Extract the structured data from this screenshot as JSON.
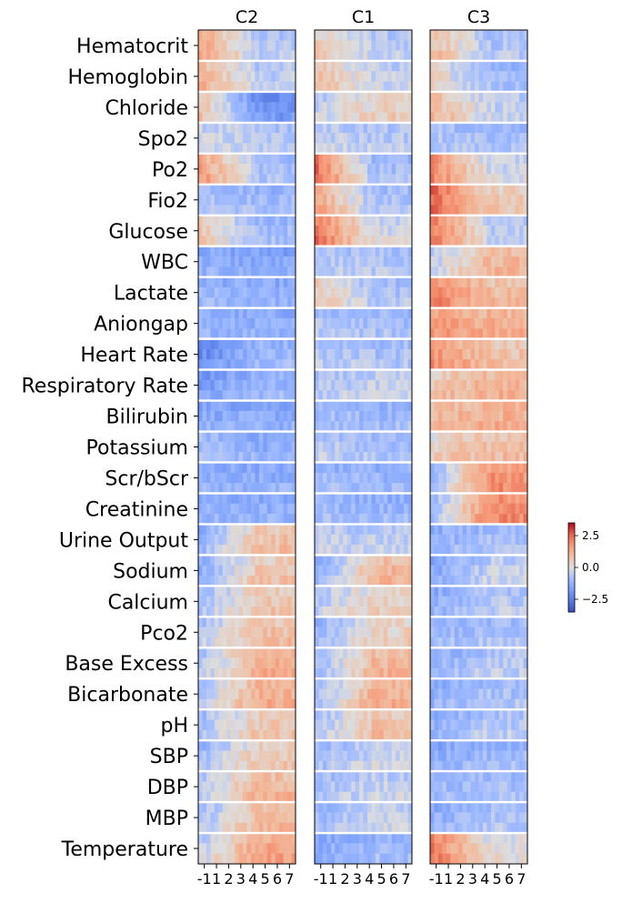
{
  "chart_data": {
    "type": "heatmap",
    "panels": [
      "C2",
      "C1",
      "C3"
    ],
    "variables": [
      "Hematocrit",
      "Hemoglobin",
      "Chloride",
      "Spo2",
      "Po2",
      "Fio2",
      "Glucose",
      "WBC",
      "Lactate",
      "Aniongap",
      "Heart Rate",
      "Respiratory Rate",
      "Bilirubin",
      "Potassium",
      "Scr/bScr",
      "Creatinine",
      "Urine Output",
      "Sodium",
      "Calcium",
      "Pco2",
      "Base Excess",
      "Bicarbonate",
      "pH",
      "SBP",
      "DBP",
      "MBP",
      "Temperature"
    ],
    "x_ticks": [
      "-1",
      "1",
      "2",
      "3",
      "4",
      "5",
      "6",
      "7"
    ],
    "rows_per_variable": 3,
    "columns": 24,
    "colorbar": {
      "ticks": [
        "2.5",
        "0.0",
        "−2.5"
      ],
      "tick_values": [
        2.5,
        0.0,
        -2.5
      ],
      "range": [
        -3.5,
        3.5
      ],
      "colormap": "coolwarm"
    },
    "mean_levels": {
      "C2": {
        "Hematocrit": [
          1.4,
          -0.6
        ],
        "Hemoglobin": [
          1.2,
          -0.5
        ],
        "Chloride": [
          0.8,
          -2.0
        ],
        "Spo2": [
          -0.2,
          -0.6
        ],
        "Po2": [
          1.6,
          -0.8
        ],
        "Fio2": [
          -0.6,
          -1.0
        ],
        "Glucose": [
          0.6,
          -0.9
        ],
        "WBC": [
          -1.3,
          -1.5
        ],
        "Lactate": [
          -1.1,
          -1.3
        ],
        "Aniongap": [
          -1.2,
          -1.3
        ],
        "Heart Rate": [
          -2.2,
          -1.0
        ],
        "Respiratory Rate": [
          -1.8,
          -1.1
        ],
        "Bilirubin": [
          -1.4,
          -1.4
        ],
        "Potassium": [
          -0.8,
          -1.3
        ],
        "Scr/bScr": [
          -1.3,
          -1.3
        ],
        "Creatinine": [
          -1.3,
          -1.3
        ],
        "Urine Output": [
          -1.2,
          0.8
        ],
        "Sodium": [
          -1.2,
          0.7
        ],
        "Calcium": [
          -0.8,
          0.6
        ],
        "Pco2": [
          -0.6,
          0.8
        ],
        "Base Excess": [
          -0.7,
          1.2
        ],
        "Bicarbonate": [
          -0.6,
          1.2
        ],
        "pH": [
          -0.8,
          0.6
        ],
        "SBP": [
          -1.0,
          0.6
        ],
        "DBP": [
          -0.5,
          1.0
        ],
        "MBP": [
          -0.8,
          0.9
        ],
        "Temperature": [
          -0.4,
          1.4
        ]
      },
      "C1": {
        "Hematocrit": [
          0.6,
          -0.5
        ],
        "Hemoglobin": [
          0.9,
          -0.4
        ],
        "Chloride": [
          -0.4,
          0.4
        ],
        "Spo2": [
          -0.4,
          -0.6
        ],
        "Po2": [
          2.4,
          -0.9
        ],
        "Fio2": [
          1.4,
          -0.8
        ],
        "Glucose": [
          2.2,
          -0.2
        ],
        "WBC": [
          -0.6,
          -0.7
        ],
        "Lactate": [
          0.6,
          -0.8
        ],
        "Aniongap": [
          -0.7,
          -0.9
        ],
        "Heart Rate": [
          -0.6,
          -0.8
        ],
        "Respiratory Rate": [
          -0.7,
          -0.4
        ],
        "Bilirubin": [
          -0.9,
          -1.0
        ],
        "Potassium": [
          -0.5,
          -0.9
        ],
        "Scr/bScr": [
          -1.0,
          -1.1
        ],
        "Creatinine": [
          -1.0,
          -1.1
        ],
        "Urine Output": [
          -0.4,
          -0.5
        ],
        "Sodium": [
          -1.4,
          1.0
        ],
        "Calcium": [
          -0.6,
          0.4
        ],
        "Pco2": [
          -1.1,
          0.4
        ],
        "Base Excess": [
          -1.0,
          1.0
        ],
        "Bicarbonate": [
          -1.0,
          1.2
        ],
        "pH": [
          -0.8,
          0.8
        ],
        "SBP": [
          -1.0,
          -0.3
        ],
        "DBP": [
          -0.8,
          -0.4
        ],
        "MBP": [
          -1.0,
          -0.3
        ],
        "Temperature": [
          -1.4,
          -1.0
        ]
      },
      "C3": {
        "Hematocrit": [
          0.9,
          -0.7
        ],
        "Hemoglobin": [
          0.4,
          -1.0
        ],
        "Chloride": [
          1.0,
          -0.4
        ],
        "Spo2": [
          -0.7,
          -0.9
        ],
        "Po2": [
          2.0,
          -0.2
        ],
        "Fio2": [
          2.6,
          0.6
        ],
        "Glucose": [
          2.4,
          -0.5
        ],
        "WBC": [
          -0.4,
          1.0
        ],
        "Lactate": [
          2.0,
          0.9
        ],
        "Aniongap": [
          1.6,
          1.2
        ],
        "Heart Rate": [
          1.8,
          0.8
        ],
        "Respiratory Rate": [
          0.6,
          1.1
        ],
        "Bilirubin": [
          1.0,
          1.2
        ],
        "Potassium": [
          0.4,
          0.8
        ],
        "Scr/bScr": [
          -1.0,
          1.8
        ],
        "Creatinine": [
          -1.0,
          1.9
        ],
        "Urine Output": [
          -1.2,
          -0.8
        ],
        "Sodium": [
          -1.4,
          -0.4
        ],
        "Calcium": [
          -1.3,
          -0.6
        ],
        "Pco2": [
          -1.1,
          -0.8
        ],
        "Base Excess": [
          -1.2,
          -0.6
        ],
        "Bicarbonate": [
          -1.3,
          -0.8
        ],
        "pH": [
          -1.2,
          -0.6
        ],
        "SBP": [
          -1.4,
          -1.0
        ],
        "DBP": [
          -1.1,
          -0.8
        ],
        "MBP": [
          -1.3,
          -0.8
        ],
        "Temperature": [
          2.2,
          0.0
        ]
      }
    }
  }
}
